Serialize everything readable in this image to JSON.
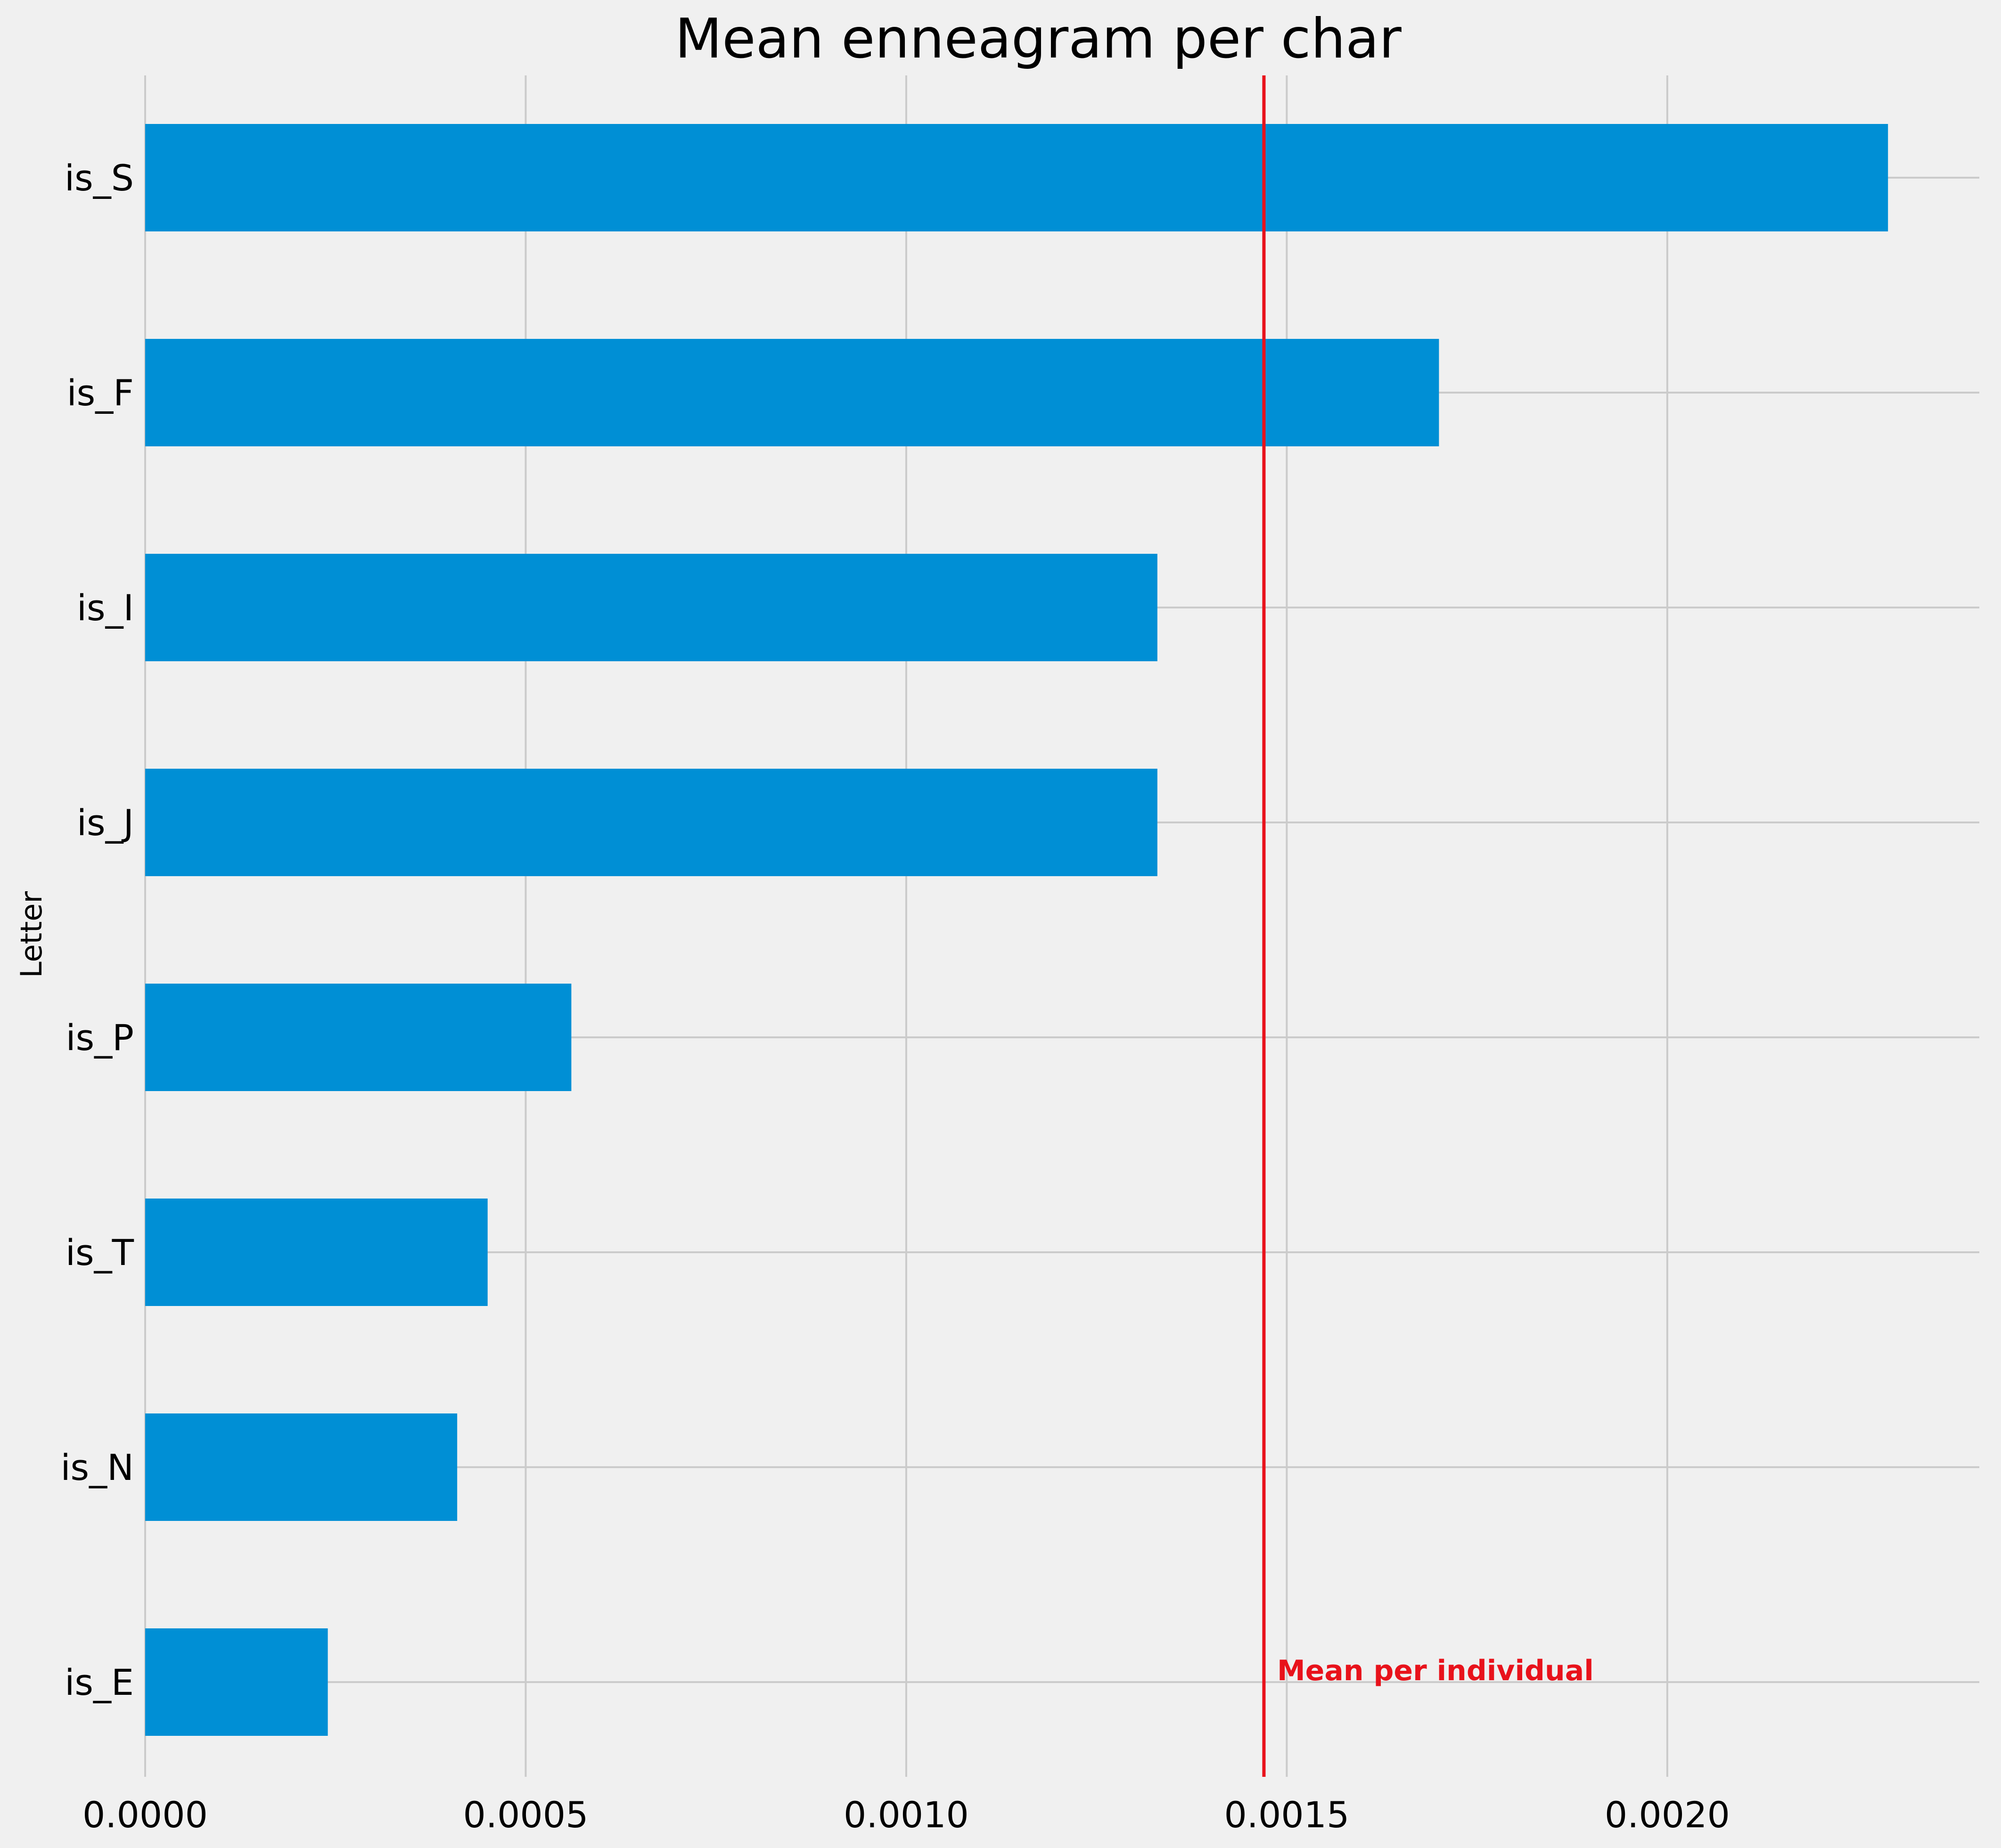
{
  "chart_data": {
    "type": "bar",
    "orientation": "horizontal",
    "title": "Mean enneagram per char",
    "xlabel": "",
    "ylabel": "Letter",
    "categories": [
      "is_S",
      "is_F",
      "is_I",
      "is_J",
      "is_P",
      "is_T",
      "is_N",
      "is_E"
    ],
    "values": [
      0.00229,
      0.0017,
      0.00133,
      0.00133,
      0.00056,
      0.00045,
      0.00041,
      0.00024
    ],
    "xlim": [
      0,
      0.00241
    ],
    "xticks": [
      "0.0000",
      "0.0005",
      "0.0010",
      "0.0015",
      "0.0020"
    ],
    "xtick_values": [
      0,
      0.0005,
      0.001,
      0.0015,
      0.002
    ],
    "grid": true,
    "bar_color": "#008fd5",
    "reference_line": {
      "value": 0.00147,
      "label": "Mean per individual",
      "color": "#e8121b"
    }
  }
}
